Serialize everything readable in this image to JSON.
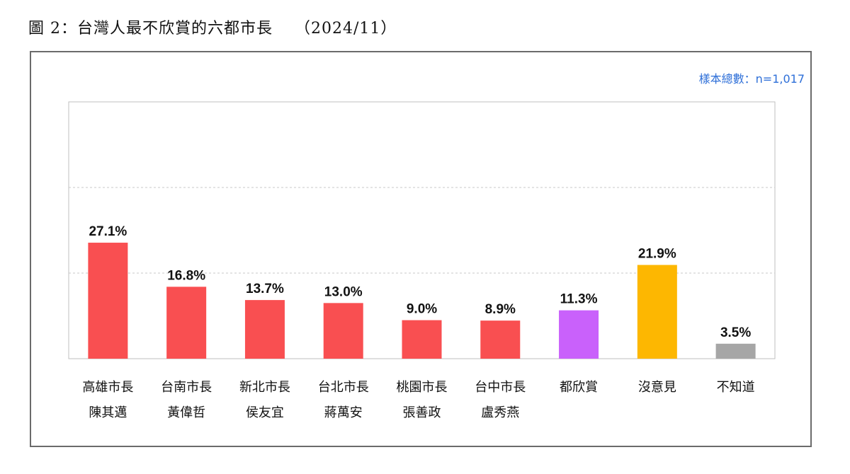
{
  "title": "圖 2：台灣人最不欣賞的六都市長　 （2024/11）",
  "sample_note": "樣本總數：n=1,017",
  "colors": {
    "red": "#f94f51",
    "purple": "#c961fb",
    "gold": "#fdb701",
    "gray": "#a6a6a6"
  },
  "chart_data": {
    "type": "bar",
    "title": "圖 2：台灣人最不欣賞的六都市長　 （2024/11）",
    "ylim": [
      0,
      60
    ],
    "grid": true,
    "categories": [
      [
        "高雄市長",
        "陳其邁"
      ],
      [
        "台南市長",
        "黃偉哲"
      ],
      [
        "新北市長",
        "侯友宜"
      ],
      [
        "台北市長",
        "蔣萬安"
      ],
      [
        "桃園市長",
        "張善政"
      ],
      [
        "台中市長",
        "盧秀燕"
      ],
      [
        "都欣賞"
      ],
      [
        "沒意見"
      ],
      [
        "不知道"
      ]
    ],
    "values": [
      27.1,
      16.8,
      13.7,
      13.0,
      9.0,
      8.9,
      11.3,
      21.9,
      3.5
    ],
    "value_labels": [
      "27.1%",
      "16.8%",
      "13.7%",
      "13.0%",
      "9.0%",
      "8.9%",
      "11.3%",
      "21.9%",
      "3.5%"
    ],
    "bar_colors": [
      "#f94f51",
      "#f94f51",
      "#f94f51",
      "#f94f51",
      "#f94f51",
      "#f94f51",
      "#c961fb",
      "#fdb701",
      "#a6a6a6"
    ]
  }
}
